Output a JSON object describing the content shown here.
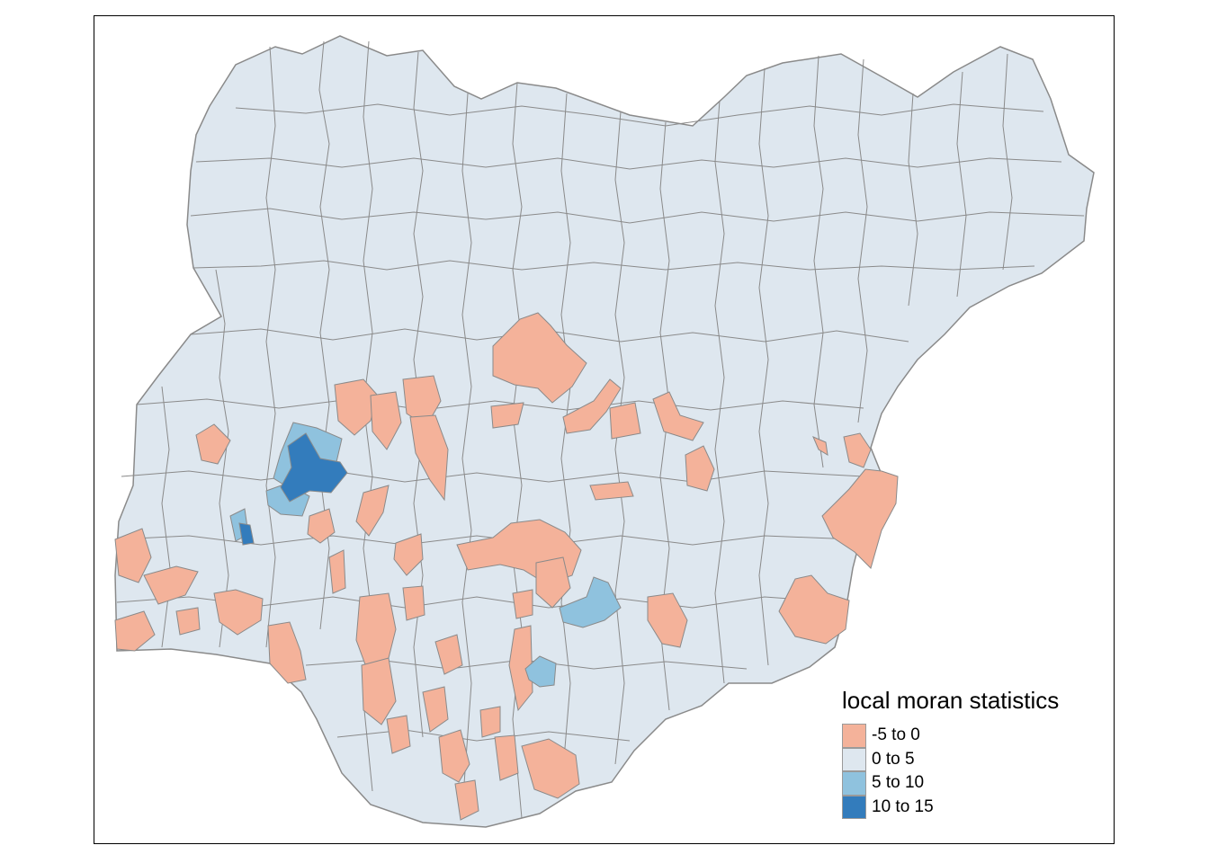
{
  "map": {
    "legend": {
      "title": "local moran statistics",
      "classes": [
        {
          "label": "-5 to 0",
          "color": "#F4B29A"
        },
        {
          "label": "0 to 5",
          "color": "#DEE7EF"
        },
        {
          "label": "5 to 10",
          "color": "#8FC2DE"
        },
        {
          "label": "10 to 15",
          "color": "#337CBC"
        }
      ]
    },
    "boundary_color": "#8a8a8a"
  }
}
